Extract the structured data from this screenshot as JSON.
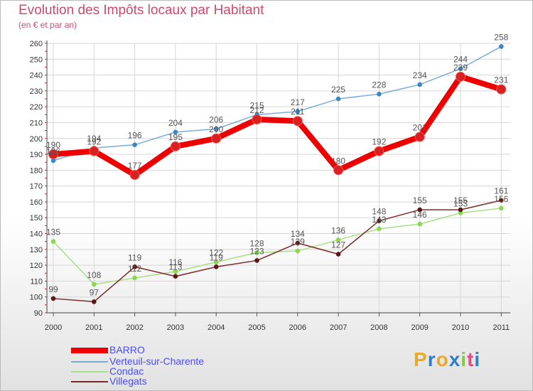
{
  "title": "Evolution des Impôts locaux par Habitant",
  "subtitle": "(en € et par an)",
  "logo": {
    "text": "Proxiti",
    "letters": [
      "P",
      "r",
      "o",
      "x",
      "i",
      "t",
      "i"
    ],
    "colors": [
      "#e8a92d",
      "#2f7ec9",
      "#e8a92d",
      "#2f7ec9",
      "#8cc63f",
      "#e04f8a",
      "#2f7ec9"
    ]
  },
  "chart_data": {
    "type": "line",
    "title": "Evolution des Impôts locaux par Habitant",
    "subtitle": "(en € et par an)",
    "x": [
      "2000",
      "2001",
      "2002",
      "2003",
      "2004",
      "2005",
      "2006",
      "2007",
      "2008",
      "2009",
      "2010",
      "2011"
    ],
    "ylim": [
      90,
      260
    ],
    "yticks": [
      90,
      100,
      110,
      120,
      130,
      140,
      150,
      160,
      170,
      180,
      190,
      200,
      210,
      220,
      230,
      240,
      250,
      260
    ],
    "grid": true,
    "legend_position": "bottom-left",
    "series": [
      {
        "name": "BARRO",
        "values": [
          190,
          192,
          177,
          195,
          200,
          212,
          211,
          180,
          192,
          201,
          239,
          231
        ],
        "color": "#ee0000",
        "marker": "#d82020",
        "width": 8
      },
      {
        "name": "Verteuil-sur-Charente",
        "values": [
          186,
          194,
          196,
          204,
          206,
          215,
          217,
          225,
          228,
          234,
          244,
          258
        ],
        "color": "#7aaed8",
        "marker": "#3a86c8",
        "width": 1.5
      },
      {
        "name": "Condac",
        "values": [
          135,
          108,
          112,
          116,
          122,
          128,
          129,
          136,
          143,
          146,
          153,
          156
        ],
        "color": "#a8e088",
        "marker": "#8cd84c",
        "width": 1.5
      },
      {
        "name": "Villegats",
        "values": [
          99,
          97,
          119,
          113,
          119,
          123,
          134,
          127,
          148,
          155,
          155,
          161
        ],
        "color": "#7a2a2a",
        "marker": "#5a1818",
        "width": 1.5
      }
    ]
  }
}
